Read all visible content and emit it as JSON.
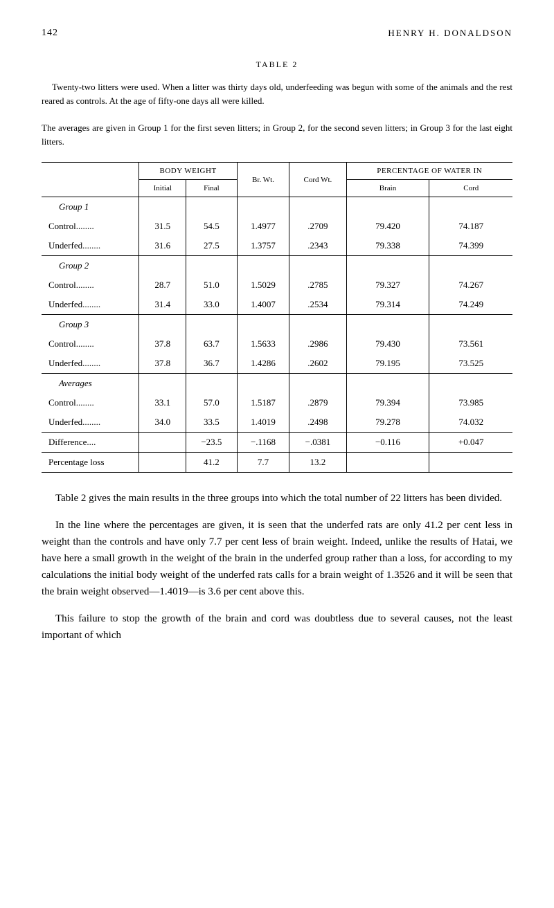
{
  "page_number": "142",
  "author": "HENRY H. DONALDSON",
  "table_label": "TABLE 2",
  "description_1": "Twenty-two litters were used. When a litter was thirty days old, underfeeding was begun with some of the animals and the rest reared as controls. At the age of fifty-one days all were killed.",
  "description_2": "The averages are given in Group 1 for the first seven litters; in Group 2, for the second seven litters; in Group 3 for the last eight litters.",
  "table": {
    "headers": {
      "body_weight": "BODY WEIGHT",
      "initial": "Initial",
      "final": "Final",
      "br_wt": "Br. Wt.",
      "cord_wt": "Cord Wt.",
      "percentage": "PERCENTAGE OF WATER IN",
      "brain": "Brain",
      "cord": "Cord"
    },
    "groups": [
      {
        "name": "Group 1",
        "rows": [
          {
            "label": "Control",
            "initial": "31.5",
            "final": "54.5",
            "br_wt": "1.4977",
            "cord_wt": ".2709",
            "brain": "79.420",
            "cord": "74.187"
          },
          {
            "label": "Underfed",
            "initial": "31.6",
            "final": "27.5",
            "br_wt": "1.3757",
            "cord_wt": ".2343",
            "brain": "79.338",
            "cord": "74.399"
          }
        ]
      },
      {
        "name": "Group 2",
        "rows": [
          {
            "label": "Control",
            "initial": "28.7",
            "final": "51.0",
            "br_wt": "1.5029",
            "cord_wt": ".2785",
            "brain": "79.327",
            "cord": "74.267"
          },
          {
            "label": "Underfed",
            "initial": "31.4",
            "final": "33.0",
            "br_wt": "1.4007",
            "cord_wt": ".2534",
            "brain": "79.314",
            "cord": "74.249"
          }
        ]
      },
      {
        "name": "Group 3",
        "rows": [
          {
            "label": "Control",
            "initial": "37.8",
            "final": "63.7",
            "br_wt": "1.5633",
            "cord_wt": ".2986",
            "brain": "79.430",
            "cord": "73.561"
          },
          {
            "label": "Underfed",
            "initial": "37.8",
            "final": "36.7",
            "br_wt": "1.4286",
            "cord_wt": ".2602",
            "brain": "79.195",
            "cord": "73.525"
          }
        ]
      },
      {
        "name": "Averages",
        "rows": [
          {
            "label": "Control",
            "initial": "33.1",
            "final": "57.0",
            "br_wt": "1.5187",
            "cord_wt": ".2879",
            "brain": "79.394",
            "cord": "73.985"
          },
          {
            "label": "Underfed",
            "initial": "34.0",
            "final": "33.5",
            "br_wt": "1.4019",
            "cord_wt": ".2498",
            "brain": "79.278",
            "cord": "74.032"
          }
        ]
      }
    ],
    "difference": {
      "label": "Difference....",
      "initial": "",
      "final": "−23.5",
      "br_wt": "−.1168",
      "cord_wt": "−.0381",
      "brain": "−0.116",
      "cord": "+0.047"
    },
    "percentage_loss": {
      "label": "Percentage loss",
      "initial": "",
      "final": "41.2",
      "br_wt": "7.7",
      "cord_wt": "13.2",
      "brain": "",
      "cord": ""
    }
  },
  "body_text_1": "Table 2 gives the main results in the three groups into which the total number of 22 litters has been divided.",
  "body_text_2": "In the line where the percentages are given, it is seen that the underfed rats are only 41.2 per cent less in weight than the controls and have only 7.7 per cent less of brain weight. Indeed, unlike the results of Hatai, we have here a small growth in the weight of the brain in the underfed group rather than a loss, for according to my calculations the initial body weight of the underfed rats calls for a brain weight of 1.3526 and it will be seen that the brain weight observed—1.4019—is 3.6 per cent above this.",
  "body_text_3": "This failure to stop the growth of the brain and cord was doubtless due to several causes, not the least important of which"
}
